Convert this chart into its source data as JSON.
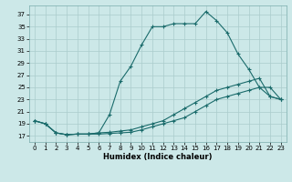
{
  "xlabel": "Humidex (Indice chaleur)",
  "background_color": "#cce8e8",
  "grid_color": "#aacccc",
  "line_color": "#1a6b6b",
  "xlim": [
    -0.5,
    23.5
  ],
  "ylim": [
    16.0,
    38.5
  ],
  "xticks": [
    0,
    1,
    2,
    3,
    4,
    5,
    6,
    7,
    8,
    9,
    10,
    11,
    12,
    13,
    14,
    15,
    16,
    17,
    18,
    19,
    20,
    21,
    22,
    23
  ],
  "yticks": [
    17,
    19,
    21,
    23,
    25,
    27,
    29,
    31,
    33,
    35,
    37
  ],
  "line1_x": [
    0,
    1,
    2,
    3,
    4,
    5,
    6,
    7,
    8,
    9,
    10,
    11,
    12,
    13,
    14,
    15,
    16,
    17,
    18,
    19,
    20,
    21,
    22,
    23
  ],
  "line1_y": [
    19.5,
    19.0,
    17.5,
    17.2,
    17.3,
    17.3,
    17.3,
    17.4,
    17.5,
    17.6,
    18.0,
    18.5,
    19.0,
    19.5,
    20.0,
    21.0,
    22.0,
    23.0,
    23.5,
    24.0,
    24.5,
    25.0,
    23.5,
    23.0
  ],
  "line2_x": [
    0,
    1,
    2,
    3,
    4,
    5,
    6,
    7,
    8,
    9,
    10,
    11,
    12,
    13,
    14,
    15,
    16,
    17,
    18,
    19,
    20,
    21,
    22,
    23
  ],
  "line2_y": [
    19.5,
    19.0,
    17.5,
    17.2,
    17.3,
    17.3,
    17.5,
    17.6,
    17.8,
    18.0,
    18.5,
    19.0,
    19.5,
    20.5,
    21.5,
    22.5,
    23.5,
    24.5,
    25.0,
    25.5,
    26.0,
    26.5,
    23.5,
    23.0
  ],
  "line3_x": [
    0,
    1,
    2,
    3,
    4,
    5,
    6,
    7,
    8,
    9,
    10,
    11,
    12,
    13,
    14,
    15,
    16,
    17,
    18,
    19,
    20,
    21,
    22,
    23
  ],
  "line3_y": [
    19.5,
    19.0,
    17.5,
    17.2,
    17.3,
    17.3,
    17.5,
    20.5,
    26.0,
    28.5,
    32.0,
    35.0,
    35.0,
    35.5,
    35.5,
    35.5,
    37.5,
    36.0,
    34.0,
    30.5,
    28.0,
    25.0,
    25.0,
    23.0
  ]
}
